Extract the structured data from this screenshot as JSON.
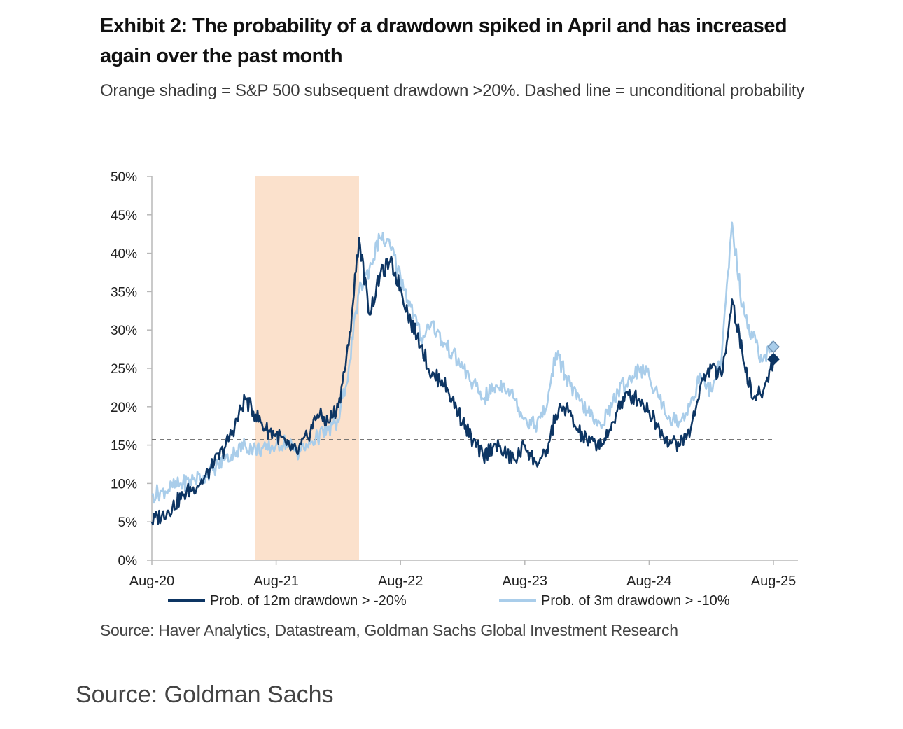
{
  "header": {
    "title": "Exhibit 2: The probability of a drawdown spiked in April and has increased again over the past month",
    "subtitle": "Orange shading = S&P 500 subsequent drawdown >20%. Dashed line = unconditional probability"
  },
  "source": "Source: Haver Analytics, Datastream, Goldman Sachs Global Investment Research",
  "caption": "Source: Goldman Sachs",
  "colors": {
    "dark_series": "#0d3563",
    "light_series": "#a9cdea",
    "shading": "#fbe1cc",
    "dashed_line": "#666666",
    "axis": "#b8b8b8"
  },
  "chart_data": {
    "type": "line",
    "title": "Exhibit 2: The probability of a drawdown spiked in April and has increased again over the past month",
    "xlabel": "",
    "ylabel": "",
    "x_range": [
      "2020-08",
      "2025-08"
    ],
    "ylim": [
      0,
      50
    ],
    "y_ticks": [
      0,
      5,
      10,
      15,
      20,
      25,
      30,
      35,
      40,
      45,
      50
    ],
    "y_tick_labels": [
      "0%",
      "5%",
      "10%",
      "15%",
      "20%",
      "25%",
      "30%",
      "35%",
      "40%",
      "45%",
      "50%"
    ],
    "x_ticks": [
      "2020-08",
      "2021-08",
      "2022-08",
      "2023-08",
      "2024-08",
      "2025-08"
    ],
    "x_tick_labels": [
      "Aug-20",
      "Aug-21",
      "Aug-22",
      "Aug-23",
      "Aug-24",
      "Aug-25"
    ],
    "grid": false,
    "legend_position": "bottom",
    "shaded_regions": [
      {
        "start": "2021-06",
        "end": "2022-04",
        "meaning": "S&P 500 subsequent drawdown >20%"
      }
    ],
    "reference_lines": [
      {
        "y": 15.7,
        "style": "dashed",
        "meaning": "unconditional probability"
      }
    ],
    "series": [
      {
        "name": "Prob. of 12m drawdown > -20%",
        "color": "#0d3563",
        "end_marker": {
          "x": "2025-08",
          "y": 26.2,
          "shape": "diamond"
        },
        "points": [
          [
            "2020-08",
            5.0
          ],
          [
            "2020-09",
            6.0
          ],
          [
            "2020-10",
            7.0
          ],
          [
            "2020-11",
            8.5
          ],
          [
            "2020-12",
            9.5
          ],
          [
            "2021-01",
            10.5
          ],
          [
            "2021-02",
            12.5
          ],
          [
            "2021-03",
            14.5
          ],
          [
            "2021-04",
            17.5
          ],
          [
            "2021-05",
            21.0
          ],
          [
            "2021-06",
            19.0
          ],
          [
            "2021-07",
            17.0
          ],
          [
            "2021-08",
            16.5
          ],
          [
            "2021-09",
            15.0
          ],
          [
            "2021-10",
            14.0
          ],
          [
            "2021-11",
            16.0
          ],
          [
            "2021-12",
            19.0
          ],
          [
            "2022-01",
            18.0
          ],
          [
            "2022-02",
            20.0
          ],
          [
            "2022-03",
            28.0
          ],
          [
            "2022-04",
            42.0
          ],
          [
            "2022-05",
            32.0
          ],
          [
            "2022-06",
            37.0
          ],
          [
            "2022-07",
            39.0
          ],
          [
            "2022-08",
            35.5
          ],
          [
            "2022-09",
            31.0
          ],
          [
            "2022-10",
            28.0
          ],
          [
            "2022-11",
            24.0
          ],
          [
            "2022-12",
            23.5
          ],
          [
            "2023-01",
            21.0
          ],
          [
            "2023-02",
            18.0
          ],
          [
            "2023-03",
            15.5
          ],
          [
            "2023-04",
            13.5
          ],
          [
            "2023-05",
            15.0
          ],
          [
            "2023-06",
            14.0
          ],
          [
            "2023-07",
            13.0
          ],
          [
            "2023-08",
            15.0
          ],
          [
            "2023-09",
            12.8
          ],
          [
            "2023-10",
            13.5
          ],
          [
            "2023-11",
            19.0
          ],
          [
            "2023-12",
            20.0
          ],
          [
            "2024-01",
            17.0
          ],
          [
            "2024-02",
            15.5
          ],
          [
            "2024-03",
            15.0
          ],
          [
            "2024-04",
            16.0
          ],
          [
            "2024-05",
            20.0
          ],
          [
            "2024-06",
            21.5
          ],
          [
            "2024-07",
            21.0
          ],
          [
            "2024-08",
            19.5
          ],
          [
            "2024-09",
            17.0
          ],
          [
            "2024-10",
            15.5
          ],
          [
            "2024-11",
            15.0
          ],
          [
            "2024-12",
            17.0
          ],
          [
            "2025-01",
            23.0
          ],
          [
            "2025-02",
            25.0
          ],
          [
            "2025-03",
            24.0
          ],
          [
            "2025-04",
            34.0
          ],
          [
            "2025-05",
            27.0
          ],
          [
            "2025-06",
            21.0
          ],
          [
            "2025-07",
            22.0
          ],
          [
            "2025-08",
            26.2
          ]
        ]
      },
      {
        "name": "Prob. of 3m drawdown > -10%",
        "color": "#a9cdea",
        "end_marker": {
          "x": "2025-08",
          "y": 27.8,
          "shape": "diamond"
        },
        "points": [
          [
            "2020-08",
            8.5
          ],
          [
            "2020-09",
            9.0
          ],
          [
            "2020-10",
            9.5
          ],
          [
            "2020-11",
            10.0
          ],
          [
            "2020-12",
            10.5
          ],
          [
            "2021-01",
            11.0
          ],
          [
            "2021-02",
            12.0
          ],
          [
            "2021-03",
            13.0
          ],
          [
            "2021-04",
            14.0
          ],
          [
            "2021-05",
            15.0
          ],
          [
            "2021-06",
            14.5
          ],
          [
            "2021-07",
            14.5
          ],
          [
            "2021-08",
            15.0
          ],
          [
            "2021-09",
            15.5
          ],
          [
            "2021-10",
            14.0
          ],
          [
            "2021-11",
            15.0
          ],
          [
            "2021-12",
            16.0
          ],
          [
            "2022-01",
            17.0
          ],
          [
            "2022-02",
            18.0
          ],
          [
            "2022-03",
            25.0
          ],
          [
            "2022-04",
            35.0
          ],
          [
            "2022-05",
            38.0
          ],
          [
            "2022-06",
            42.0
          ],
          [
            "2022-07",
            41.0
          ],
          [
            "2022-08",
            37.0
          ],
          [
            "2022-09",
            33.0
          ],
          [
            "2022-10",
            29.0
          ],
          [
            "2022-11",
            31.0
          ],
          [
            "2022-12",
            28.5
          ],
          [
            "2023-01",
            27.0
          ],
          [
            "2023-02",
            25.0
          ],
          [
            "2023-03",
            23.0
          ],
          [
            "2023-04",
            21.0
          ],
          [
            "2023-05",
            22.5
          ],
          [
            "2023-06",
            23.0
          ],
          [
            "2023-07",
            21.0
          ],
          [
            "2023-08",
            18.5
          ],
          [
            "2023-09",
            17.5
          ],
          [
            "2023-10",
            19.5
          ],
          [
            "2023-11",
            27.0
          ],
          [
            "2023-12",
            24.0
          ],
          [
            "2024-01",
            21.0
          ],
          [
            "2024-02",
            19.5
          ],
          [
            "2024-03",
            17.5
          ],
          [
            "2024-04",
            19.0
          ],
          [
            "2024-05",
            22.0
          ],
          [
            "2024-06",
            23.5
          ],
          [
            "2024-07",
            25.0
          ],
          [
            "2024-08",
            24.0
          ],
          [
            "2024-09",
            21.0
          ],
          [
            "2024-10",
            18.5
          ],
          [
            "2024-11",
            18.0
          ],
          [
            "2024-12",
            20.5
          ],
          [
            "2025-01",
            24.0
          ],
          [
            "2025-02",
            22.0
          ],
          [
            "2025-03",
            26.5
          ],
          [
            "2025-04",
            44.0
          ],
          [
            "2025-05",
            33.0
          ],
          [
            "2025-06",
            29.0
          ],
          [
            "2025-07",
            26.0
          ],
          [
            "2025-08",
            27.8
          ]
        ]
      }
    ]
  }
}
